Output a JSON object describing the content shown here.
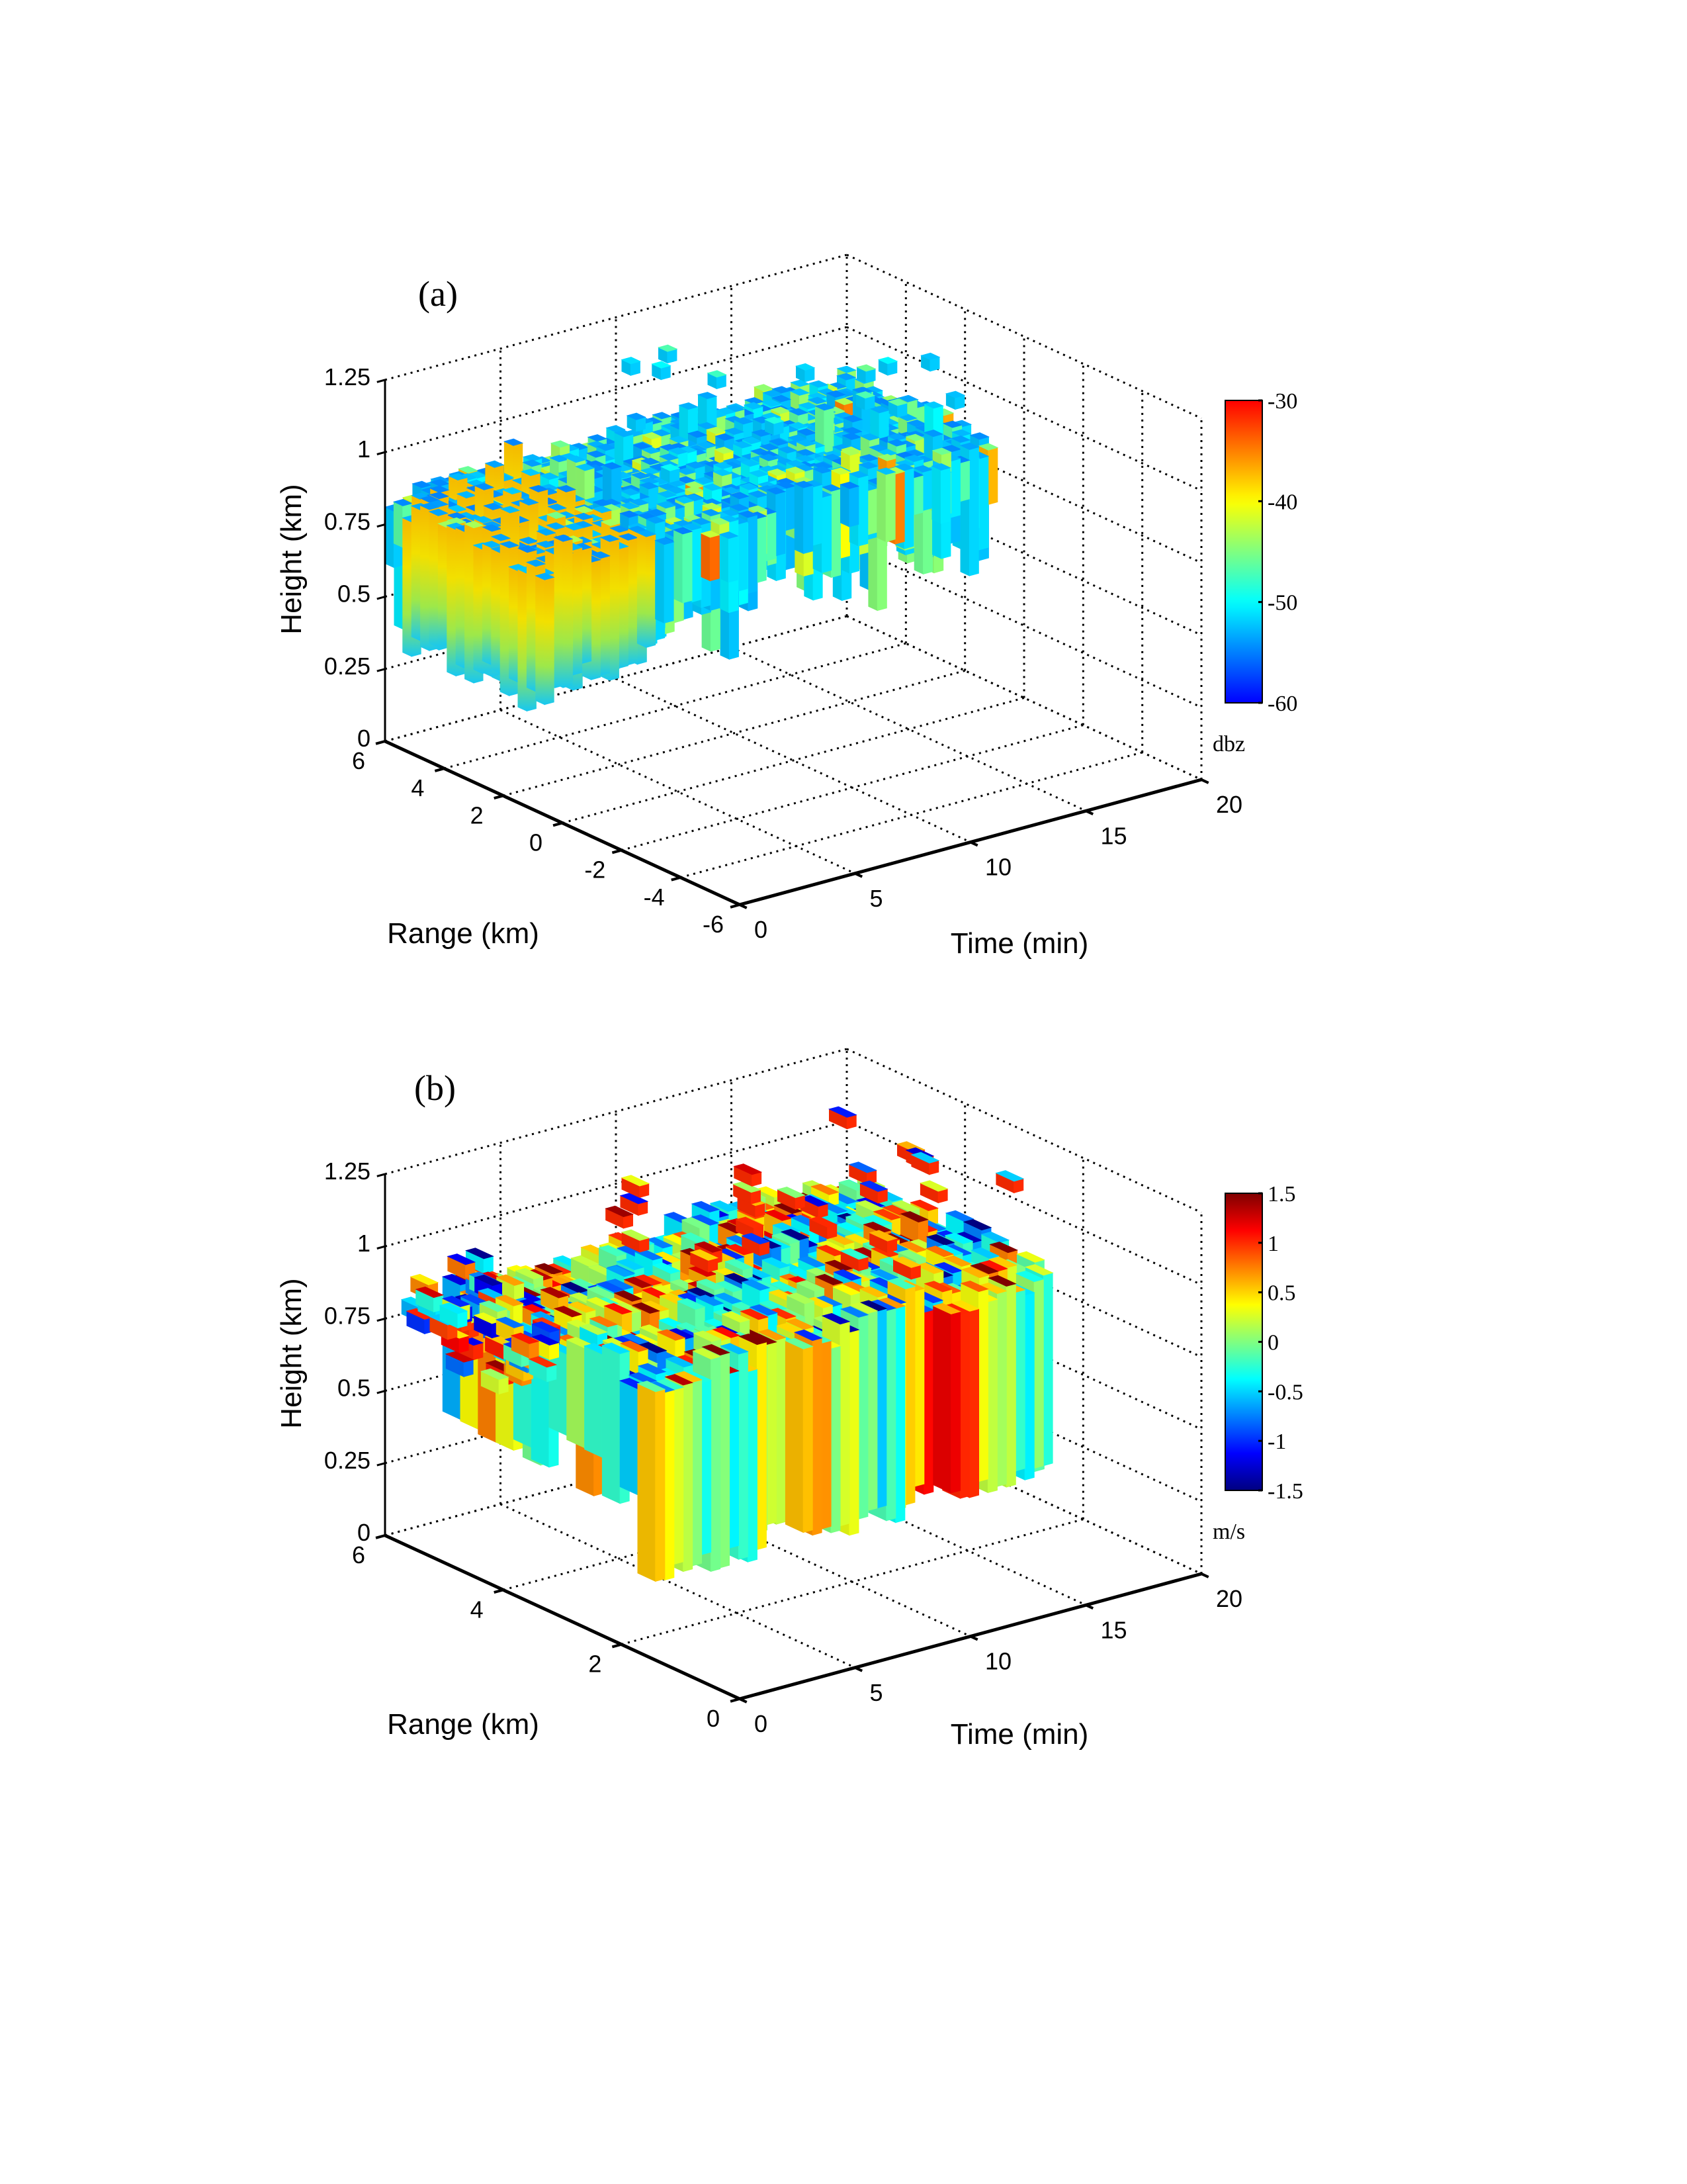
{
  "chart_data": [
    {
      "panel_label": "(a)",
      "type": "3d-volume",
      "xlabel": "Time (min)",
      "ylabel": "Range (km)",
      "zlabel": "Height (km)",
      "xlim": [
        0,
        20
      ],
      "ylim": [
        -6,
        6
      ],
      "zlim": [
        0,
        1.25
      ],
      "xticks": [
        "0",
        "5",
        "10",
        "15",
        "20"
      ],
      "yticks": [
        "6",
        "4",
        "2",
        "0",
        "-2",
        "-4",
        "-6"
      ],
      "zticks": [
        "0",
        "0.25",
        "0.5",
        "0.75",
        "1",
        "1.25"
      ],
      "grid": true,
      "colorbar": {
        "label": "dbz",
        "range": [
          -60,
          -30
        ],
        "ticks": [
          "-30",
          "-40",
          "-50",
          "-60"
        ],
        "colormap": "jet"
      },
      "data_extent": {
        "time": [
          0,
          20
        ],
        "range": [
          0.6,
          6
        ],
        "height": [
          0.3,
          1.2
        ],
        "typical_value": -54,
        "front_wall_value": -42
      }
    },
    {
      "panel_label": "(b)",
      "type": "3d-volume",
      "xlabel": "Time (min)",
      "ylabel": "Range (km)",
      "zlabel": "Height (km)",
      "xlim": [
        0,
        20
      ],
      "ylim": [
        0,
        6
      ],
      "zlim": [
        0,
        1.25
      ],
      "xticks": [
        "0",
        "5",
        "10",
        "15",
        "20"
      ],
      "yticks": [
        "6",
        "4",
        "2",
        "0"
      ],
      "zticks": [
        "0",
        "0.25",
        "0.5",
        "0.75",
        "1",
        "1.25"
      ],
      "grid": true,
      "colorbar": {
        "label": "m/s",
        "range": [
          -1.5,
          1.5
        ],
        "ticks": [
          "1.5",
          "1",
          "0.5",
          "0",
          "-0.5",
          "-1",
          "-1.5"
        ],
        "colormap": "jet"
      },
      "data_extent": {
        "time": [
          2.5,
          20
        ],
        "range": [
          2.6,
          6
        ],
        "height": [
          0.1,
          0.9
        ],
        "value_range": [
          -1.5,
          1.5
        ]
      }
    }
  ]
}
